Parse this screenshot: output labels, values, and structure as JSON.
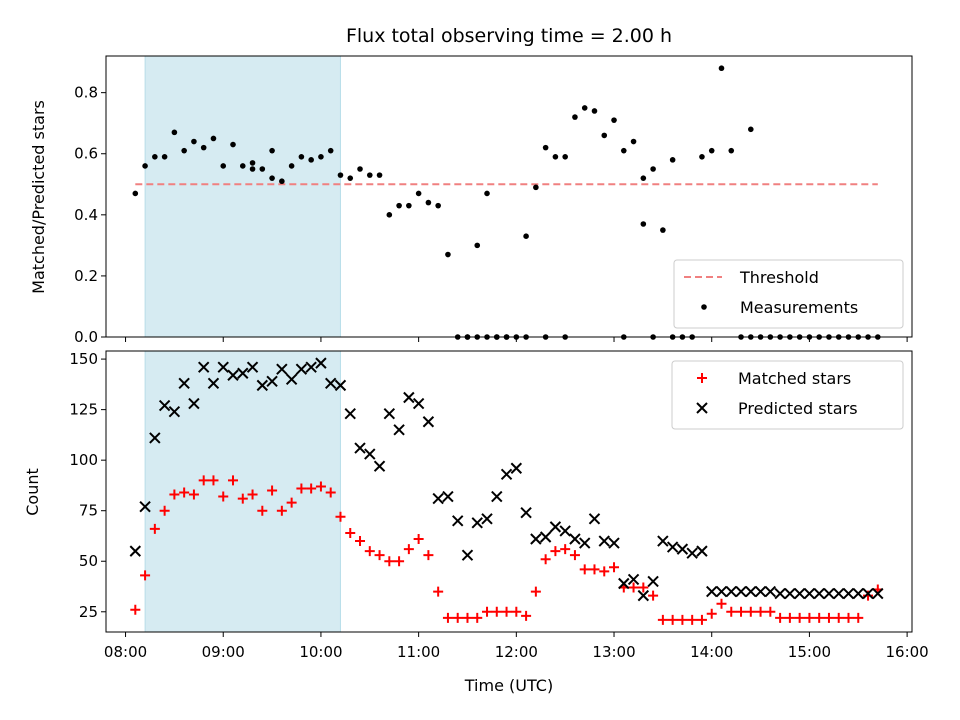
{
  "chart_data": [
    {
      "type": "scatter",
      "title": "Flux total observing time = 2.00 h",
      "xlabel": "",
      "ylabel": "Matched/Predicted stars",
      "xlim": [
        "07:48",
        "16:03"
      ],
      "ylim": [
        0,
        0.92
      ],
      "yticks": [
        0.0,
        0.2,
        0.4,
        0.6,
        0.8
      ],
      "ytick_labels": [
        "0.0",
        "0.2",
        "0.4",
        "0.6",
        "0.8"
      ],
      "shaded_interval": [
        "08:12",
        "10:12"
      ],
      "threshold": {
        "name": "Threshold",
        "value": 0.5,
        "x_range": [
          "08:06",
          "15:42"
        ],
        "color": "#f08080"
      },
      "legend": {
        "placement": "lower-right",
        "entries": [
          "Threshold",
          "Measurements"
        ]
      },
      "series": [
        {
          "name": "Measurements",
          "color": "#000000",
          "marker": "dot",
          "x": [
            "08:06",
            "08:12",
            "08:18",
            "08:24",
            "08:30",
            "08:36",
            "08:42",
            "08:48",
            "08:54",
            "09:00",
            "09:06",
            "09:12",
            "09:18",
            "09:24",
            "09:30",
            "09:36",
            "09:42",
            "09:48",
            "09:54",
            "10:00",
            "10:06",
            "10:12",
            "10:18",
            "10:24",
            "10:30",
            "10:36",
            "10:42",
            "10:48",
            "10:54",
            "11:00",
            "11:06",
            "11:12",
            "11:18",
            "11:24",
            "11:30",
            "11:36",
            "11:42",
            "11:48",
            "11:54",
            "12:00",
            "12:06",
            "12:12",
            "12:18",
            "12:24",
            "12:30",
            "12:36",
            "12:42",
            "12:48",
            "12:54",
            "13:00",
            "13:06",
            "13:12",
            "13:18",
            "13:24",
            "13:30",
            "13:36",
            "13:42",
            "13:48",
            "13:54",
            "14:00",
            "14:06",
            "14:12",
            "14:18",
            "14:24",
            "14:30",
            "14:36",
            "14:42",
            "14:48",
            "14:54",
            "15:00",
            "15:06",
            "15:12",
            "15:18",
            "15:24",
            "15:30",
            "15:36",
            "15:42",
            "09:18",
            "09:30",
            "11:30",
            "11:36",
            "11:42",
            "11:48",
            "11:54",
            "12:06",
            "12:18",
            "12:30",
            "13:06",
            "13:18",
            "13:24",
            "13:36",
            "14:24"
          ],
          "y": [
            0.47,
            0.56,
            0.59,
            0.59,
            0.67,
            0.61,
            0.64,
            0.62,
            0.65,
            0.56,
            0.63,
            0.56,
            0.57,
            0.55,
            0.61,
            0.51,
            0.56,
            0.59,
            0.58,
            0.59,
            0.61,
            0.53,
            0.52,
            0.55,
            0.53,
            0.53,
            0.4,
            0.43,
            0.43,
            0.47,
            0.44,
            0.43,
            0.27,
            0.0,
            0.0,
            0.3,
            0.47,
            0.0,
            0.0,
            0.0,
            0.33,
            0.49,
            0.62,
            0.59,
            0.59,
            0.72,
            0.75,
            0.74,
            0.66,
            0.71,
            0.61,
            0.64,
            0.52,
            0.55,
            0.35,
            0.0,
            0.0,
            0.0,
            0.59,
            0.61,
            0.88,
            0.61,
            0.0,
            0.0,
            0.0,
            0.0,
            0.0,
            0.0,
            0.0,
            0.0,
            0.0,
            0.0,
            0.0,
            0.0,
            0.0,
            0.0,
            0.0,
            0.55,
            0.52,
            0.0,
            0.0,
            0.0,
            0.0,
            0.0,
            0.0,
            0.0,
            0.0,
            0.0,
            0.37,
            0.0,
            0.58,
            0.68
          ]
        }
      ]
    },
    {
      "type": "scatter",
      "title": "",
      "xlabel": "Time (UTC)",
      "ylabel": "Count",
      "xlim": [
        "07:48",
        "16:03"
      ],
      "ylim": [
        15,
        154
      ],
      "yticks": [
        25,
        50,
        75,
        100,
        125,
        150
      ],
      "ytick_labels": [
        "25",
        "50",
        "75",
        "100",
        "125",
        "150"
      ],
      "xticks": [
        "08:00",
        "09:00",
        "10:00",
        "11:00",
        "12:00",
        "13:00",
        "14:00",
        "15:00",
        "16:00"
      ],
      "xtick_labels": [
        "08:00",
        "09:00",
        "10:00",
        "11:00",
        "12:00",
        "13:00",
        "14:00",
        "15:00",
        "16:00"
      ],
      "shaded_interval": [
        "08:12",
        "10:12"
      ],
      "legend": {
        "placement": "top-right",
        "entries": [
          "Matched stars",
          "Predicted stars"
        ]
      },
      "series": [
        {
          "name": "Matched stars",
          "color": "#ff0000",
          "marker": "plus",
          "x": [
            "08:06",
            "08:12",
            "08:18",
            "08:24",
            "08:30",
            "08:36",
            "08:42",
            "08:48",
            "08:54",
            "09:00",
            "09:06",
            "09:12",
            "09:18",
            "09:24",
            "09:30",
            "09:36",
            "09:42",
            "09:48",
            "09:54",
            "10:00",
            "10:06",
            "10:12",
            "10:18",
            "10:24",
            "10:30",
            "10:36",
            "10:42",
            "10:48",
            "10:54",
            "11:00",
            "11:06",
            "11:12",
            "11:18",
            "11:24",
            "11:30",
            "11:36",
            "11:42",
            "11:48",
            "11:54",
            "12:00",
            "12:06",
            "12:12",
            "12:18",
            "12:24",
            "12:30",
            "12:36",
            "12:42",
            "12:48",
            "12:54",
            "13:00",
            "13:06",
            "13:12",
            "13:18",
            "13:24",
            "13:30",
            "13:36",
            "13:42",
            "13:48",
            "13:54",
            "14:00",
            "14:06",
            "14:12",
            "14:18",
            "14:24",
            "14:30",
            "14:36",
            "14:42",
            "14:48",
            "14:54",
            "15:00",
            "15:06",
            "15:12",
            "15:18",
            "15:24",
            "15:30",
            "15:36",
            "15:42"
          ],
          "y": [
            26,
            43,
            66,
            75,
            83,
            84,
            83,
            90,
            90,
            82,
            90,
            81,
            83,
            75,
            85,
            75,
            79,
            86,
            86,
            87,
            84,
            72,
            64,
            60,
            55,
            53,
            50,
            50,
            56,
            61,
            53,
            35,
            22,
            22,
            22,
            22,
            25,
            25,
            25,
            25,
            23,
            35,
            51,
            55,
            56,
            53,
            46,
            46,
            45,
            47,
            37,
            37,
            37,
            33,
            21,
            21,
            21,
            21,
            21,
            24,
            29,
            25,
            25,
            25,
            25,
            25,
            22,
            22,
            22,
            22,
            22,
            22,
            22,
            22,
            22,
            33,
            36
          ]
        },
        {
          "name": "Predicted stars",
          "color": "#000000",
          "marker": "x",
          "x": [
            "08:06",
            "08:12",
            "08:18",
            "08:24",
            "08:30",
            "08:36",
            "08:42",
            "08:48",
            "08:54",
            "09:00",
            "09:06",
            "09:12",
            "09:18",
            "09:24",
            "09:30",
            "09:36",
            "09:42",
            "09:48",
            "09:54",
            "10:00",
            "10:06",
            "10:12",
            "10:18",
            "10:24",
            "10:30",
            "10:36",
            "10:42",
            "10:48",
            "10:54",
            "11:00",
            "11:06",
            "11:12",
            "11:18",
            "11:24",
            "11:30",
            "11:36",
            "11:42",
            "11:48",
            "11:54",
            "12:00",
            "12:06",
            "12:12",
            "12:18",
            "12:24",
            "12:30",
            "12:36",
            "12:42",
            "12:48",
            "12:54",
            "13:00",
            "13:06",
            "13:12",
            "13:18",
            "13:24",
            "13:30",
            "13:36",
            "13:42",
            "13:48",
            "13:54",
            "14:00",
            "14:06",
            "14:12",
            "14:18",
            "14:24",
            "14:30",
            "14:36",
            "14:42",
            "14:48",
            "14:54",
            "15:00",
            "15:06",
            "15:12",
            "15:18",
            "15:24",
            "15:30",
            "15:36",
            "15:42"
          ],
          "y": [
            55,
            77,
            111,
            127,
            124,
            138,
            128,
            146,
            138,
            146,
            142,
            143,
            146,
            137,
            139,
            145,
            140,
            145,
            146,
            148,
            138,
            137,
            123,
            106,
            103,
            97,
            123,
            115,
            131,
            128,
            119,
            81,
            82,
            70,
            53,
            69,
            71,
            82,
            93,
            96,
            74,
            61,
            62,
            67,
            65,
            61,
            59,
            71,
            60,
            59,
            39,
            41,
            33,
            40,
            60,
            57,
            56,
            54,
            55,
            35,
            35,
            35,
            35,
            35,
            35,
            35,
            34,
            34,
            34,
            34,
            34,
            34,
            34,
            34,
            34,
            34,
            34
          ]
        }
      ]
    }
  ]
}
